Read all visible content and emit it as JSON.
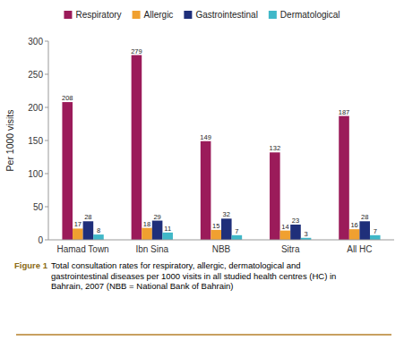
{
  "chart_data": {
    "type": "bar",
    "categories": [
      "Hamad Town",
      "Ibn Sina",
      "NBB",
      "Sitra",
      "All HC"
    ],
    "series": [
      {
        "name": "Respiratory",
        "color": "#9B1B5A",
        "values": [
          208,
          279,
          149,
          132,
          187
        ]
      },
      {
        "name": "Allergic",
        "color": "#F0A030",
        "values": [
          17,
          18,
          15,
          14,
          16
        ]
      },
      {
        "name": "Gastrointestinal",
        "color": "#1F2F7A",
        "values": [
          28,
          29,
          32,
          23,
          28
        ]
      },
      {
        "name": "Dermatological",
        "color": "#40B8C8",
        "values": [
          8,
          11,
          7,
          3,
          7
        ]
      }
    ],
    "ylabel": "Per 1000 visits",
    "ylim": [
      0,
      300
    ],
    "yticks": [
      0,
      50,
      100,
      150,
      200,
      250,
      300
    ],
    "grid": false,
    "legend": "top",
    "data_labels": true,
    "annotations": [
      "Figure 1",
      "Total consultation rates for respiratory, allergic, dermatological and\ngastrointestinal diseases per 1000 visits in all studied health centres (HC) in\nBahrain, 2007 (NBB = National Bank of Bahrain)"
    ]
  }
}
